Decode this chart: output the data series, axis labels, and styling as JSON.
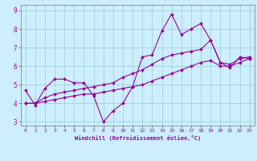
{
  "xlabel": "Windchill (Refroidissement éolien,°C)",
  "bg_color": "#cceeff",
  "line_color": "#990099",
  "grid_color": "#99cccc",
  "xlim": [
    -0.5,
    23.5
  ],
  "ylim": [
    2.8,
    9.3
  ],
  "xticks": [
    0,
    1,
    2,
    3,
    4,
    5,
    6,
    7,
    8,
    9,
    10,
    11,
    12,
    13,
    14,
    15,
    16,
    17,
    18,
    19,
    20,
    21,
    22,
    23
  ],
  "yticks": [
    3,
    4,
    5,
    6,
    7,
    8,
    9
  ],
  "line1_x": [
    0,
    1,
    2,
    3,
    4,
    5,
    6,
    7,
    8,
    9,
    10,
    11,
    12,
    13,
    14,
    15,
    16,
    17,
    18,
    19,
    20,
    21,
    22,
    23
  ],
  "line1_y": [
    4.7,
    3.9,
    4.8,
    5.3,
    5.3,
    5.1,
    5.1,
    4.4,
    3.0,
    3.6,
    4.0,
    4.9,
    6.5,
    6.6,
    7.9,
    8.8,
    7.7,
    8.0,
    8.3,
    7.4,
    6.2,
    5.9,
    6.5,
    6.4
  ],
  "line2_x": [
    0,
    1,
    2,
    3,
    4,
    5,
    6,
    7,
    8,
    9,
    10,
    11,
    12,
    13,
    14,
    15,
    16,
    17,
    18,
    19,
    20,
    21,
    22,
    23
  ],
  "line2_y": [
    4.0,
    4.0,
    4.3,
    4.5,
    4.6,
    4.7,
    4.8,
    4.9,
    5.0,
    5.1,
    5.4,
    5.6,
    5.8,
    6.1,
    6.4,
    6.6,
    6.7,
    6.8,
    6.9,
    7.4,
    6.2,
    6.1,
    6.4,
    6.5
  ],
  "line3_x": [
    0,
    1,
    2,
    3,
    4,
    5,
    6,
    7,
    8,
    9,
    10,
    11,
    12,
    13,
    14,
    15,
    16,
    17,
    18,
    19,
    20,
    21,
    22,
    23
  ],
  "line3_y": [
    4.0,
    4.0,
    4.1,
    4.2,
    4.3,
    4.4,
    4.5,
    4.5,
    4.6,
    4.7,
    4.8,
    4.9,
    5.0,
    5.2,
    5.4,
    5.6,
    5.8,
    6.0,
    6.2,
    6.3,
    6.0,
    6.0,
    6.2,
    6.4
  ]
}
